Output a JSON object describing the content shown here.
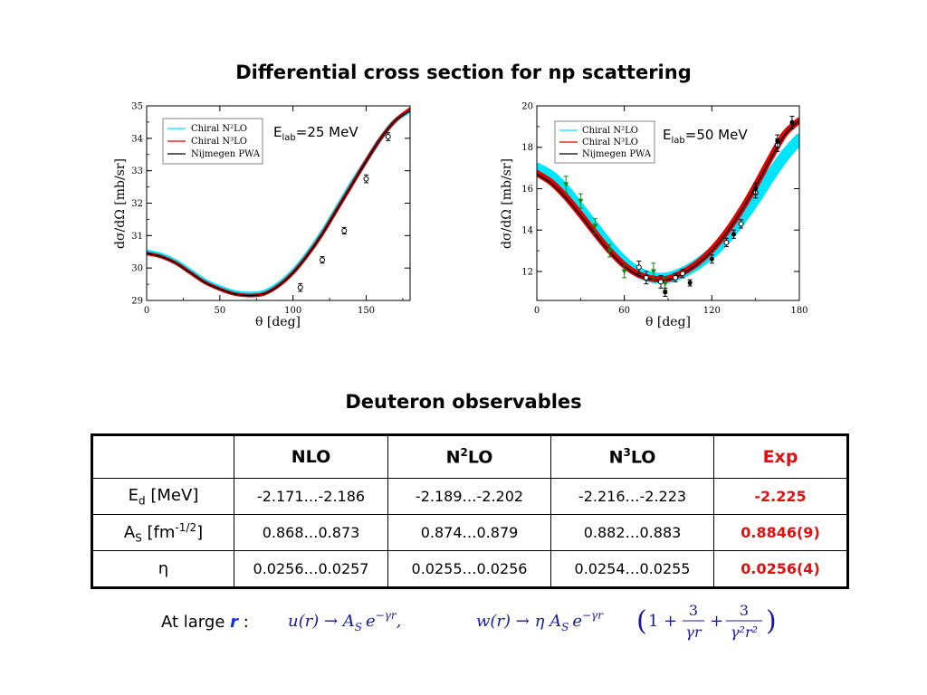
{
  "title": "Differential cross section for np scattering",
  "deuteron_title": "Deuteron observables",
  "colors": {
    "n2lo": "#00e5ff",
    "n3lo": "#e00000",
    "pwa": "#000000",
    "exp": "#e01010",
    "green": "#0a8a0a"
  },
  "chart_data": [
    {
      "type": "line",
      "energy_label": "E",
      "energy_sub": "lab",
      "energy_value": "=25 MeV",
      "xlabel": "θ [deg]",
      "ylabel": "dσ/dΩ  [mb/sr]",
      "xlim": [
        0,
        180
      ],
      "ylim": [
        29,
        35
      ],
      "xticks": [
        0,
        50,
        100,
        150
      ],
      "yticks": [
        29,
        30,
        31,
        32,
        33,
        34,
        35
      ],
      "legend": [
        "Chiral N²LO",
        "Chiral N³LO",
        "Nijmegen PWA"
      ],
      "legend_placement": "top-left",
      "series": [
        {
          "name": "Chiral N²LO",
          "band": true,
          "x": [
            0,
            10,
            20,
            30,
            40,
            50,
            60,
            70,
            80,
            90,
            100,
            110,
            120,
            130,
            140,
            150,
            160,
            170,
            180
          ],
          "y": [
            30.5,
            30.4,
            30.2,
            29.9,
            29.6,
            29.4,
            29.25,
            29.2,
            29.25,
            29.5,
            29.9,
            30.45,
            31.1,
            31.85,
            32.6,
            33.3,
            34.0,
            34.55,
            34.85
          ]
        },
        {
          "name": "Chiral N³LO",
          "band": true,
          "x": [
            0,
            10,
            20,
            30,
            40,
            50,
            60,
            70,
            80,
            90,
            100,
            110,
            120,
            130,
            140,
            150,
            160,
            170,
            180
          ],
          "y": [
            30.45,
            30.35,
            30.15,
            29.85,
            29.55,
            29.35,
            29.2,
            29.15,
            29.2,
            29.45,
            29.85,
            30.4,
            31.05,
            31.8,
            32.55,
            33.3,
            34.0,
            34.55,
            34.9
          ]
        },
        {
          "name": "Nijmegen PWA",
          "band": false,
          "x": [
            0,
            10,
            20,
            30,
            40,
            50,
            60,
            70,
            80,
            90,
            100,
            110,
            120,
            130,
            140,
            150,
            160,
            170,
            180
          ],
          "y": [
            30.45,
            30.35,
            30.15,
            29.85,
            29.55,
            29.35,
            29.2,
            29.15,
            29.2,
            29.45,
            29.85,
            30.4,
            31.05,
            31.8,
            32.55,
            33.3,
            34.0,
            34.55,
            34.85
          ]
        }
      ],
      "points": [
        {
          "x": 105,
          "y": 29.4,
          "err": 0.12
        },
        {
          "x": 120,
          "y": 30.25,
          "err": 0.1
        },
        {
          "x": 135,
          "y": 31.15,
          "err": 0.1
        },
        {
          "x": 150,
          "y": 32.75,
          "err": 0.12
        },
        {
          "x": 165,
          "y": 34.05,
          "err": 0.12
        }
      ]
    },
    {
      "type": "line",
      "energy_label": "E",
      "energy_sub": "lab",
      "energy_value": "=50 MeV",
      "xlabel": "θ [deg]",
      "ylabel": "dσ/dΩ  [mb/sr]",
      "xlim": [
        0,
        180
      ],
      "ylim": [
        10.6,
        20
      ],
      "xticks": [
        0,
        60,
        120,
        180
      ],
      "yticks": [
        12,
        14,
        16,
        18,
        20
      ],
      "legend": [
        "Chiral N²LO",
        "Chiral N³LO",
        "Nijmegen PWA"
      ],
      "legend_placement": "top-left",
      "series": [
        {
          "name": "Chiral N²LO",
          "band": true,
          "x": [
            0,
            10,
            20,
            30,
            40,
            50,
            60,
            70,
            80,
            90,
            100,
            110,
            120,
            130,
            140,
            150,
            160,
            170,
            180
          ],
          "y": [
            17.0,
            16.6,
            15.9,
            15.0,
            14.1,
            13.2,
            12.45,
            11.95,
            11.7,
            11.7,
            11.95,
            12.35,
            12.9,
            13.6,
            14.5,
            15.5,
            16.6,
            17.6,
            18.4
          ]
        },
        {
          "name": "Chiral N³LO",
          "band": true,
          "x": [
            0,
            10,
            20,
            30,
            40,
            50,
            60,
            70,
            80,
            90,
            100,
            110,
            120,
            130,
            140,
            150,
            160,
            170,
            180
          ],
          "y": [
            16.75,
            16.3,
            15.6,
            14.75,
            13.85,
            13.0,
            12.3,
            11.85,
            11.65,
            11.65,
            11.95,
            12.4,
            13.05,
            13.9,
            14.95,
            16.15,
            17.45,
            18.65,
            19.3
          ]
        },
        {
          "name": "Nijmegen PWA",
          "band": false,
          "x": [
            0,
            10,
            20,
            30,
            40,
            50,
            60,
            70,
            80,
            90,
            100,
            110,
            120,
            130,
            140,
            150,
            160,
            170,
            180
          ],
          "y": [
            16.7,
            16.25,
            15.55,
            14.7,
            13.8,
            12.95,
            12.25,
            11.8,
            11.6,
            11.6,
            11.9,
            12.35,
            13.0,
            13.85,
            14.9,
            16.1,
            17.4,
            18.6,
            19.3
          ]
        }
      ],
      "points": [
        {
          "x": 20,
          "y": 16.2,
          "err": 0.4,
          "style": "green"
        },
        {
          "x": 30,
          "y": 15.4,
          "err": 0.35,
          "style": "green"
        },
        {
          "x": 40,
          "y": 14.2,
          "err": 0.35,
          "style": "green"
        },
        {
          "x": 50,
          "y": 13.0,
          "err": 0.3,
          "style": "green"
        },
        {
          "x": 60,
          "y": 12.0,
          "err": 0.3,
          "style": "green"
        },
        {
          "x": 80,
          "y": 12.0,
          "err": 0.4,
          "style": "green"
        },
        {
          "x": 88,
          "y": 11.4,
          "err": 0.3,
          "style": "green"
        },
        {
          "x": 70,
          "y": 12.2,
          "err": 0.3,
          "style": "open"
        },
        {
          "x": 75,
          "y": 11.7,
          "err": 0.3,
          "style": "open"
        },
        {
          "x": 85,
          "y": 11.5,
          "err": 0.3,
          "style": "open"
        },
        {
          "x": 95,
          "y": 11.7,
          "err": 0.2,
          "style": "open"
        },
        {
          "x": 100,
          "y": 11.9,
          "err": 0.2,
          "style": "open"
        },
        {
          "x": 130,
          "y": 13.4,
          "err": 0.2,
          "style": "open"
        },
        {
          "x": 140,
          "y": 14.3,
          "err": 0.2,
          "style": "open"
        },
        {
          "x": 150,
          "y": 15.8,
          "err": 0.25,
          "style": "open"
        },
        {
          "x": 165,
          "y": 18.1,
          "err": 0.3,
          "style": "open"
        },
        {
          "x": 88,
          "y": 11.0,
          "err": 0.2,
          "style": "filled"
        },
        {
          "x": 105,
          "y": 11.45,
          "err": 0.15,
          "style": "filled"
        },
        {
          "x": 120,
          "y": 12.6,
          "err": 0.2,
          "style": "filled"
        },
        {
          "x": 135,
          "y": 13.8,
          "err": 0.2,
          "style": "filled"
        },
        {
          "x": 150,
          "y": 16.0,
          "err": 0.25,
          "style": "filled"
        },
        {
          "x": 165,
          "y": 18.3,
          "err": 0.3,
          "style": "filled"
        },
        {
          "x": 175,
          "y": 19.2,
          "err": 0.3,
          "style": "filled"
        }
      ]
    }
  ],
  "table": {
    "headers": {
      "nlo": "NLO",
      "n2lo_base": "N",
      "n2lo_sup": "2",
      "n2lo_rest": "LO",
      "n3lo_base": "N",
      "n3lo_sup": "3",
      "n3lo_rest": "LO",
      "exp": "Exp"
    },
    "rows": [
      {
        "label": "E",
        "label_sub": "d",
        "label_rest": " [MeV]",
        "nlo": "-2.171…-2.186",
        "n2lo": "-2.189…-2.202",
        "n3lo": "-2.216…-2.223",
        "exp": "-2.225"
      },
      {
        "label": "A",
        "label_sub": "S",
        "label_rest": " [fm",
        "label_sup": "-1/2",
        "label_end": "]",
        "nlo": "0.868…0.873",
        "n2lo": "0.874…0.879",
        "n3lo": "0.882…0.883",
        "exp": "0.8846(9)"
      },
      {
        "label": "η",
        "nlo": "0.0256…0.0257",
        "n2lo": "0.0255…0.0256",
        "n3lo": "0.0254…0.0255",
        "exp": "0.0256(4)"
      }
    ]
  },
  "footer": {
    "prefix": "At large ",
    "var": "r",
    "colon": " :",
    "formula_u_lhs": "u(r) → A",
    "formula_u_sub": "S",
    "formula_u_exp": "e",
    "formula_u_sup": "−γr",
    "formula_u_comma": ",",
    "formula_w_lhs": "w(r) → η A",
    "formula_w_sub": "S",
    "formula_w_exp": "e",
    "formula_w_sup": "−γr",
    "formula_paren_open": "(",
    "formula_one_plus": "1 +",
    "formula_frac1_num": "3",
    "formula_frac1_den": "γr",
    "formula_plus": "+",
    "formula_frac2_num": "3",
    "formula_frac2_den": "γ²r²",
    "formula_paren_close": ")"
  }
}
